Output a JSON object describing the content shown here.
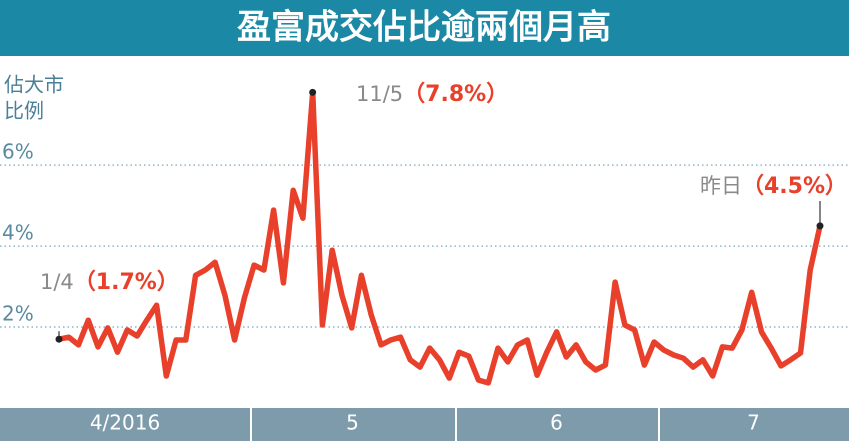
{
  "chart_data": {
    "type": "line",
    "title": "盈富成交佔比逾兩個月高",
    "y_axis_label": [
      "佔大市",
      "比例"
    ],
    "months": [
      "4/2016",
      "5",
      "6",
      "7"
    ],
    "values": [
      1.7,
      1.75,
      1.56,
      2.17,
      1.51,
      1.98,
      1.38,
      1.93,
      1.78,
      2.17,
      2.54,
      0.79,
      1.68,
      1.68,
      3.28,
      3.41,
      3.6,
      2.79,
      1.68,
      2.72,
      3.53,
      3.41,
      4.89,
      3.09,
      5.38,
      4.69,
      7.8,
      2.05,
      3.9,
      2.79,
      1.98,
      3.28,
      2.3,
      1.56,
      1.68,
      1.75,
      1.19,
      1.01,
      1.48,
      1.19,
      0.74,
      1.38,
      1.28,
      0.69,
      0.62,
      1.48,
      1.14,
      1.56,
      1.68,
      0.81,
      1.38,
      1.88,
      1.26,
      1.56,
      1.14,
      0.94,
      1.06,
      3.11,
      2.05,
      1.93,
      1.06,
      1.63,
      1.43,
      1.31,
      1.23,
      1.01,
      1.19,
      0.79,
      1.51,
      1.48,
      1.93,
      2.86,
      1.88,
      1.48,
      1.04,
      1.19,
      1.36,
      3.41,
      4.5
    ],
    "color": "#e8402a",
    "ylim": [
      0,
      8.5
    ],
    "yticks": [
      {
        "value": 2,
        "label": "2%"
      },
      {
        "value": 4,
        "label": "4%"
      },
      {
        "value": 6,
        "label": "6%"
      }
    ],
    "grid": true,
    "annotations": [
      {
        "text": "1/4",
        "value_label": "（1.7%）"
      },
      {
        "text": "11/5",
        "value_label": "（7.8%）"
      },
      {
        "text": "昨日",
        "value_label": "（4.5%）"
      }
    ]
  }
}
